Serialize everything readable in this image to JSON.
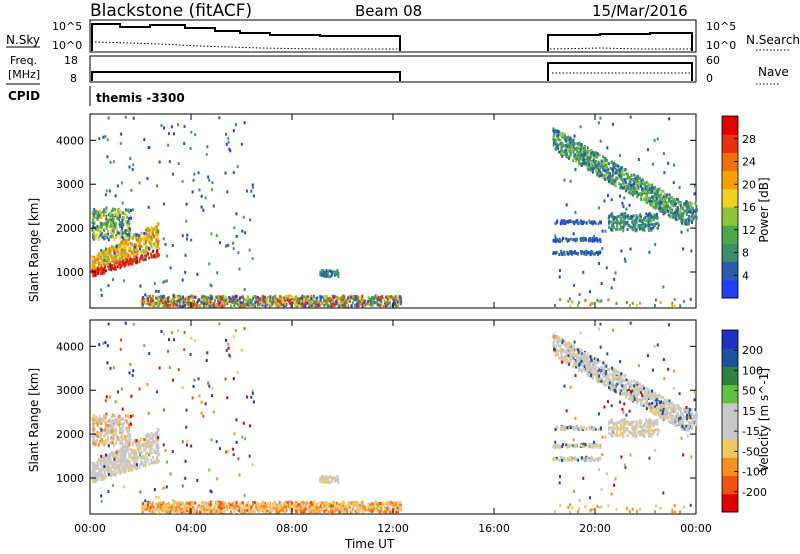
{
  "header": {
    "station": "Blackstone (fitACF)",
    "beam": "Beam 08",
    "date": "15/Mar/2016"
  },
  "side_labels": {
    "nsky": "N.Sky",
    "freq_line1": "Freq.",
    "freq_line2": "[MHz]",
    "cpid": "CPID",
    "nsearch": "N.Search",
    "nave": "Nave"
  },
  "cpid_value": "themis -3300",
  "colors": {
    "power_scale": [
      "#1f3fff",
      "#2a5bb0",
      "#3a8f6a",
      "#4aa84a",
      "#8ec63a",
      "#f0d020",
      "#f8a000",
      "#f07010",
      "#e83010",
      "#e00000"
    ],
    "velocity_scale": [
      "#e00000",
      "#f05010",
      "#f89020",
      "#f0c860",
      "#c8c8c8",
      "#c8c8c8",
      "#60c040",
      "#308040",
      "#2050a0",
      "#2030c0"
    ]
  },
  "chart_data": [
    {
      "type": "line",
      "name": "N.Sky / N.Search panel",
      "x": [
        "00:00",
        "12:20",
        "18:20",
        "24:00"
      ],
      "left_ticks": [
        "10^5",
        "10^0"
      ],
      "right_ticks": [
        "10^5",
        "10^0"
      ],
      "note_segments": [
        [
          0.0,
          12.3
        ],
        [
          18.3,
          24.0
        ]
      ]
    },
    {
      "type": "line",
      "name": "Freq / Nave panel",
      "left_ticks": [
        "18",
        "8"
      ],
      "right_ticks": [
        "60",
        "0"
      ],
      "segments": [
        [
          0.0,
          12.3
        ],
        [
          18.3,
          24.0
        ]
      ]
    },
    {
      "type": "heatmap",
      "title": "",
      "xlabel": "",
      "ylabel": "Slant Range [km]",
      "colorbar_label": "Power [dB]",
      "colorbar_ticks": [
        "28",
        "24",
        "20",
        "16",
        "12",
        "8",
        "4"
      ],
      "ylim": [
        180,
        4600
      ],
      "yticks": [
        "4000",
        "3000",
        "2000",
        "1000"
      ],
      "xlim_hours": [
        0,
        24
      ],
      "echo_regions": [
        {
          "t_start": 0.0,
          "t_end": 2.7,
          "r_start": 900,
          "r_end": 2500,
          "level": "high"
        },
        {
          "t_start": 2.0,
          "t_end": 12.3,
          "r_start": 180,
          "r_end": 400,
          "level": "mid"
        },
        {
          "t_start": 9.0,
          "t_end": 9.8,
          "r_start": 850,
          "r_end": 1000,
          "level": "mid"
        },
        {
          "t_start": 18.3,
          "t_end": 24.0,
          "r_start": 2000,
          "r_end": 4300,
          "level": "mid"
        },
        {
          "t_start": 18.3,
          "t_end": 20.2,
          "r_start": 1300,
          "r_end": 2200,
          "level": "low"
        }
      ]
    },
    {
      "type": "heatmap",
      "title": "",
      "xlabel": "Time UT",
      "ylabel": "Slant Range [km]",
      "colorbar_label": "Velocity [m s^-1]",
      "colorbar_ticks": [
        "200",
        "100",
        "50",
        "15",
        "-15",
        "-50",
        "-100",
        "-200"
      ],
      "ylim": [
        180,
        4600
      ],
      "yticks": [
        "4000",
        "3000",
        "2000",
        "1000"
      ],
      "xticks": [
        "00:00",
        "04:00",
        "08:00",
        "12:00",
        "16:00",
        "20:00",
        "00:00"
      ],
      "xlim_hours": [
        0,
        24
      ]
    }
  ]
}
